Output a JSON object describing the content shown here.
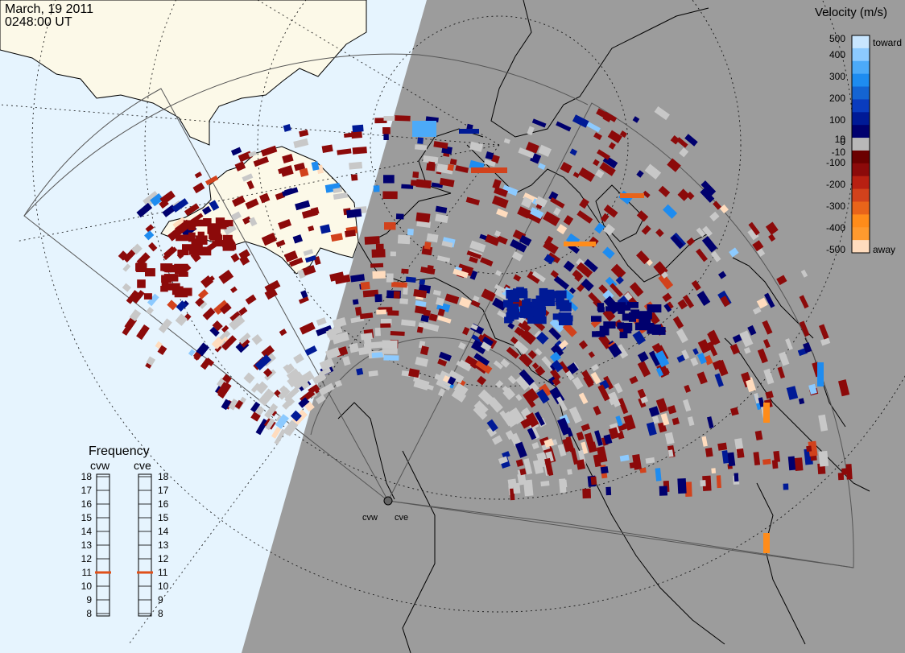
{
  "header": {
    "date": "March, 19 2011",
    "time": "0248:00 UT"
  },
  "colorbar": {
    "title": "Velocity (m/s)",
    "ticks": [
      "500",
      "400",
      "300",
      "200",
      "100",
      "10",
      "0",
      "-10",
      "-100",
      "-200",
      "-300",
      "-400",
      "-500"
    ],
    "toward_label": "toward",
    "away_label": "away",
    "colors": [
      "#ffdcbe",
      "#ff9a2e",
      "#ff8c1a",
      "#e8641a",
      "#d2421c",
      "#b82012",
      "#8c0a0a",
      "#6b0000",
      "#b8b8b8",
      "#00006e",
      "#001a96",
      "#0a3cbe",
      "#1464d2",
      "#1e8cf0",
      "#4caaf8",
      "#8ccaff",
      "#c8e6ff"
    ]
  },
  "frequency_panel": {
    "title": "Frequency",
    "radars": [
      {
        "name": "cvw",
        "selected_mhz": 11
      },
      {
        "name": "cve",
        "selected_mhz": 11
      }
    ],
    "ticks": [
      "18",
      "17",
      "16",
      "15",
      "14",
      "13",
      "12",
      "11",
      "10",
      "9",
      "8"
    ]
  },
  "sites": {
    "west": "cvw",
    "east": "cve"
  },
  "map_colors": {
    "ocean": "#e6f4fe",
    "land": "#fcf9e8",
    "night": "#9c9c9c",
    "ground_scatter": "#c8c8c8"
  }
}
